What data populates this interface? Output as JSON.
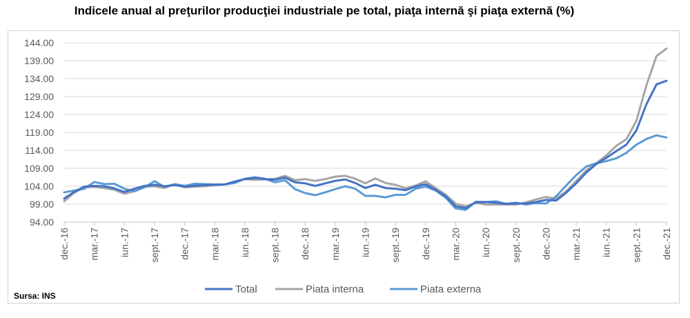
{
  "title": "Indicele anual al preţurilor producţiei industriale pe total, piaţa internă şi piaţa externă (%)",
  "source": "Sursa: INS",
  "chart_data": {
    "type": "line",
    "title": "Indicele anual al preţurilor producţiei industriale pe total, piaţa internă şi piaţa externă (%)",
    "ylim": [
      94,
      144
    ],
    "y_ticks": [
      "94.00",
      "99.00",
      "104.00",
      "109.00",
      "114.00",
      "119.00",
      "124.00",
      "129.00",
      "134.00",
      "139.00",
      "144.00"
    ],
    "x": [
      "dec.-16",
      "ian.-17",
      "feb.-17",
      "mar.-17",
      "apr.-17",
      "mai.-17",
      "iun.-17",
      "iul.-17",
      "aug.-17",
      "sept.-17",
      "oct.-17",
      "nov.-17",
      "dec.-17",
      "ian.-18",
      "feb.-18",
      "mar.-18",
      "apr.-18",
      "mai.-18",
      "iun.-18",
      "iul.-18",
      "aug.-18",
      "sept.-18",
      "oct.-18",
      "nov.-18",
      "dec.-18",
      "ian.-19",
      "feb.-19",
      "mar.-19",
      "apr.-19",
      "mai.-19",
      "iun.-19",
      "iul.-19",
      "aug.-19",
      "sept.-19",
      "oct.-19",
      "nov.-19",
      "dec.-19",
      "ian.-20",
      "feb.-20",
      "mar.-20",
      "apr.-20",
      "mai.-20",
      "iun.-20",
      "iul.-20",
      "aug.-20",
      "sept.-20",
      "oct.-20",
      "nov.-20",
      "dec.-20",
      "ian.-21",
      "feb.-21",
      "mar.-21",
      "apr.-21",
      "mai.-21",
      "iun.-21",
      "iul.-21",
      "aug.-21",
      "sept.-21",
      "oct.-21",
      "nov.-21",
      "dec.-21"
    ],
    "x_tick_labels": [
      "dec.-16",
      "mar.-17",
      "iun.-17",
      "sept.-17",
      "dec.-17",
      "mar.-18",
      "iun.-18",
      "sept.-18",
      "dec.-18",
      "mar.-19",
      "iun.-19",
      "sept.-19",
      "dec.-19",
      "mar.-20",
      "iun.-20",
      "sept.-20",
      "dec.-20",
      "mar.-21",
      "iun.-21",
      "sept.-21",
      "dec.-21"
    ],
    "grid": true,
    "legend_position": "bottom",
    "series": [
      {
        "name": "Total",
        "color": "#4472c4",
        "values": [
          100.6,
          102.4,
          103.9,
          104.1,
          104.0,
          103.4,
          102.4,
          103.3,
          104.1,
          104.4,
          104.0,
          104.3,
          103.9,
          104.1,
          104.3,
          104.4,
          104.5,
          105.3,
          106.0,
          106.3,
          106.0,
          105.8,
          106.4,
          105.1,
          104.8,
          104.1,
          104.8,
          105.5,
          105.9,
          104.9,
          103.5,
          104.4,
          103.5,
          103.3,
          102.9,
          103.9,
          104.6,
          103.0,
          101.2,
          98.4,
          97.9,
          99.5,
          99.6,
          99.4,
          99.1,
          99.2,
          99.2,
          99.6,
          100.2,
          100.0,
          102.2,
          104.8,
          107.8,
          110.2,
          111.9,
          113.8,
          115.6,
          119.6,
          126.9,
          132.4,
          133.4
        ]
      },
      {
        "name": "Piata interna",
        "color": "#a5a5a5",
        "values": [
          99.8,
          102.2,
          103.7,
          103.8,
          103.5,
          103.0,
          101.9,
          102.6,
          103.8,
          104.0,
          103.5,
          104.6,
          103.7,
          103.9,
          104.0,
          104.3,
          104.5,
          105.3,
          106.0,
          105.8,
          105.9,
          106.1,
          106.9,
          105.7,
          106.0,
          105.5,
          106.0,
          106.7,
          106.9,
          106.1,
          104.8,
          106.2,
          104.9,
          104.4,
          103.4,
          104.2,
          105.4,
          103.5,
          101.7,
          99.1,
          98.4,
          99.4,
          98.9,
          98.9,
          98.9,
          98.9,
          99.5,
          100.3,
          101.0,
          100.5,
          102.6,
          105.4,
          108.4,
          110.4,
          112.6,
          115.3,
          117.1,
          122.3,
          132.2,
          140.3,
          142.4
        ]
      },
      {
        "name": "Piata externa",
        "color": "#5b9bd5",
        "values": [
          102.3,
          102.8,
          103.3,
          105.2,
          104.6,
          104.7,
          103.3,
          102.6,
          103.7,
          105.4,
          103.8,
          104.6,
          104.1,
          104.7,
          104.6,
          104.5,
          104.5,
          104.9,
          106.1,
          106.5,
          106.1,
          105.1,
          105.7,
          103.2,
          102.1,
          101.5,
          102.3,
          103.2,
          104.0,
          103.3,
          101.3,
          101.3,
          100.9,
          101.6,
          101.6,
          103.3,
          103.9,
          102.8,
          100.8,
          97.8,
          97.4,
          99.7,
          99.6,
          99.8,
          99.1,
          99.4,
          98.9,
          99.3,
          99.2,
          101.2,
          104.2,
          107.1,
          109.5,
          110.4,
          111.0,
          111.8,
          113.3,
          115.6,
          117.2,
          118.2,
          117.6
        ]
      }
    ]
  }
}
